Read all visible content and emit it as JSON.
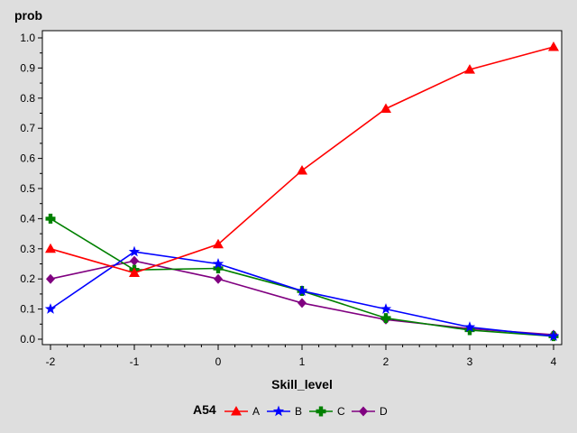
{
  "chart_data": {
    "type": "line",
    "title": "",
    "xlabel": "Skill_level",
    "ylabel": "prob",
    "x": [
      -2,
      -1,
      0,
      1,
      2,
      3,
      4
    ],
    "xlim": [
      -2,
      4
    ],
    "ylim": [
      0,
      1
    ],
    "x_ticks": [
      "-2",
      "-1",
      "0",
      "1",
      "2",
      "3",
      "4"
    ],
    "y_ticks": [
      "0.0",
      "0.1",
      "0.2",
      "0.3",
      "0.4",
      "0.5",
      "0.6",
      "0.7",
      "0.8",
      "0.9",
      "1.0"
    ],
    "grid": false,
    "legend": {
      "title": "A54",
      "placement": "bottom"
    },
    "series": [
      {
        "name": "A",
        "color": "#ff0000",
        "marker": "triangle",
        "values": [
          0.3,
          0.22,
          0.315,
          0.56,
          0.765,
          0.895,
          0.97
        ]
      },
      {
        "name": "B",
        "color": "#0000ff",
        "marker": "star",
        "values": [
          0.1,
          0.29,
          0.25,
          0.16,
          0.1,
          0.04,
          0.01
        ]
      },
      {
        "name": "C",
        "color": "#008000",
        "marker": "plus",
        "values": [
          0.4,
          0.23,
          0.235,
          0.16,
          0.07,
          0.03,
          0.01
        ]
      },
      {
        "name": "D",
        "color": "#800080",
        "marker": "diamond",
        "values": [
          0.2,
          0.26,
          0.2,
          0.12,
          0.065,
          0.035,
          0.015
        ]
      }
    ]
  }
}
